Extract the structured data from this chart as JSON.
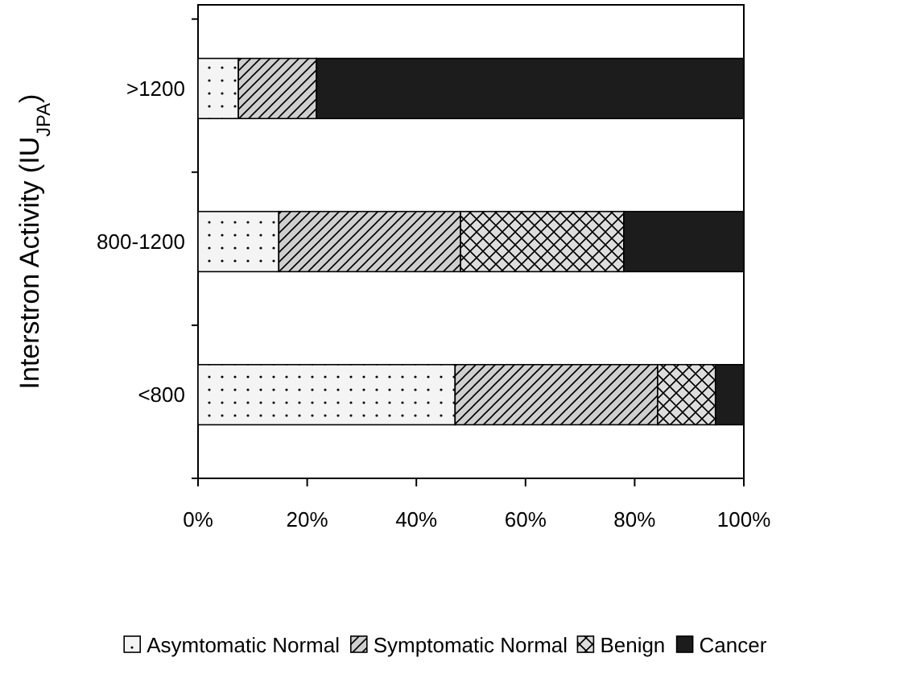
{
  "chart_data": {
    "type": "bar",
    "orientation": "horizontal",
    "stacked": true,
    "ylabel": "Interstron Activity (IU$_{JPA}$)",
    "categories": [
      ">1200",
      "800-1200",
      "<800"
    ],
    "xlim": [
      0,
      100
    ],
    "xticks": [
      {
        "value": 0,
        "label": "0%"
      },
      {
        "value": 20,
        "label": "20%"
      },
      {
        "value": 40,
        "label": "40%"
      },
      {
        "value": 60,
        "label": "60%"
      },
      {
        "value": 80,
        "label": "80%"
      },
      {
        "value": 100,
        "label": "100%"
      }
    ],
    "grid": false,
    "legend": "bottom",
    "series": [
      {
        "name": "Asymtomatic Normal",
        "color": "#f4f4f4",
        "values": [
          7.4,
          14.8,
          47.1
        ]
      },
      {
        "name": "Symptomatic Normal",
        "color": "#cfcfcf",
        "values": [
          14.3,
          33.3,
          37.1
        ]
      },
      {
        "name": "Benign",
        "color": "#dddddd",
        "values": [
          0,
          29.9,
          10.6
        ]
      },
      {
        "name": "Cancer",
        "color": "#1c1c1c",
        "values": [
          78.3,
          22,
          5.2
        ]
      }
    ]
  }
}
